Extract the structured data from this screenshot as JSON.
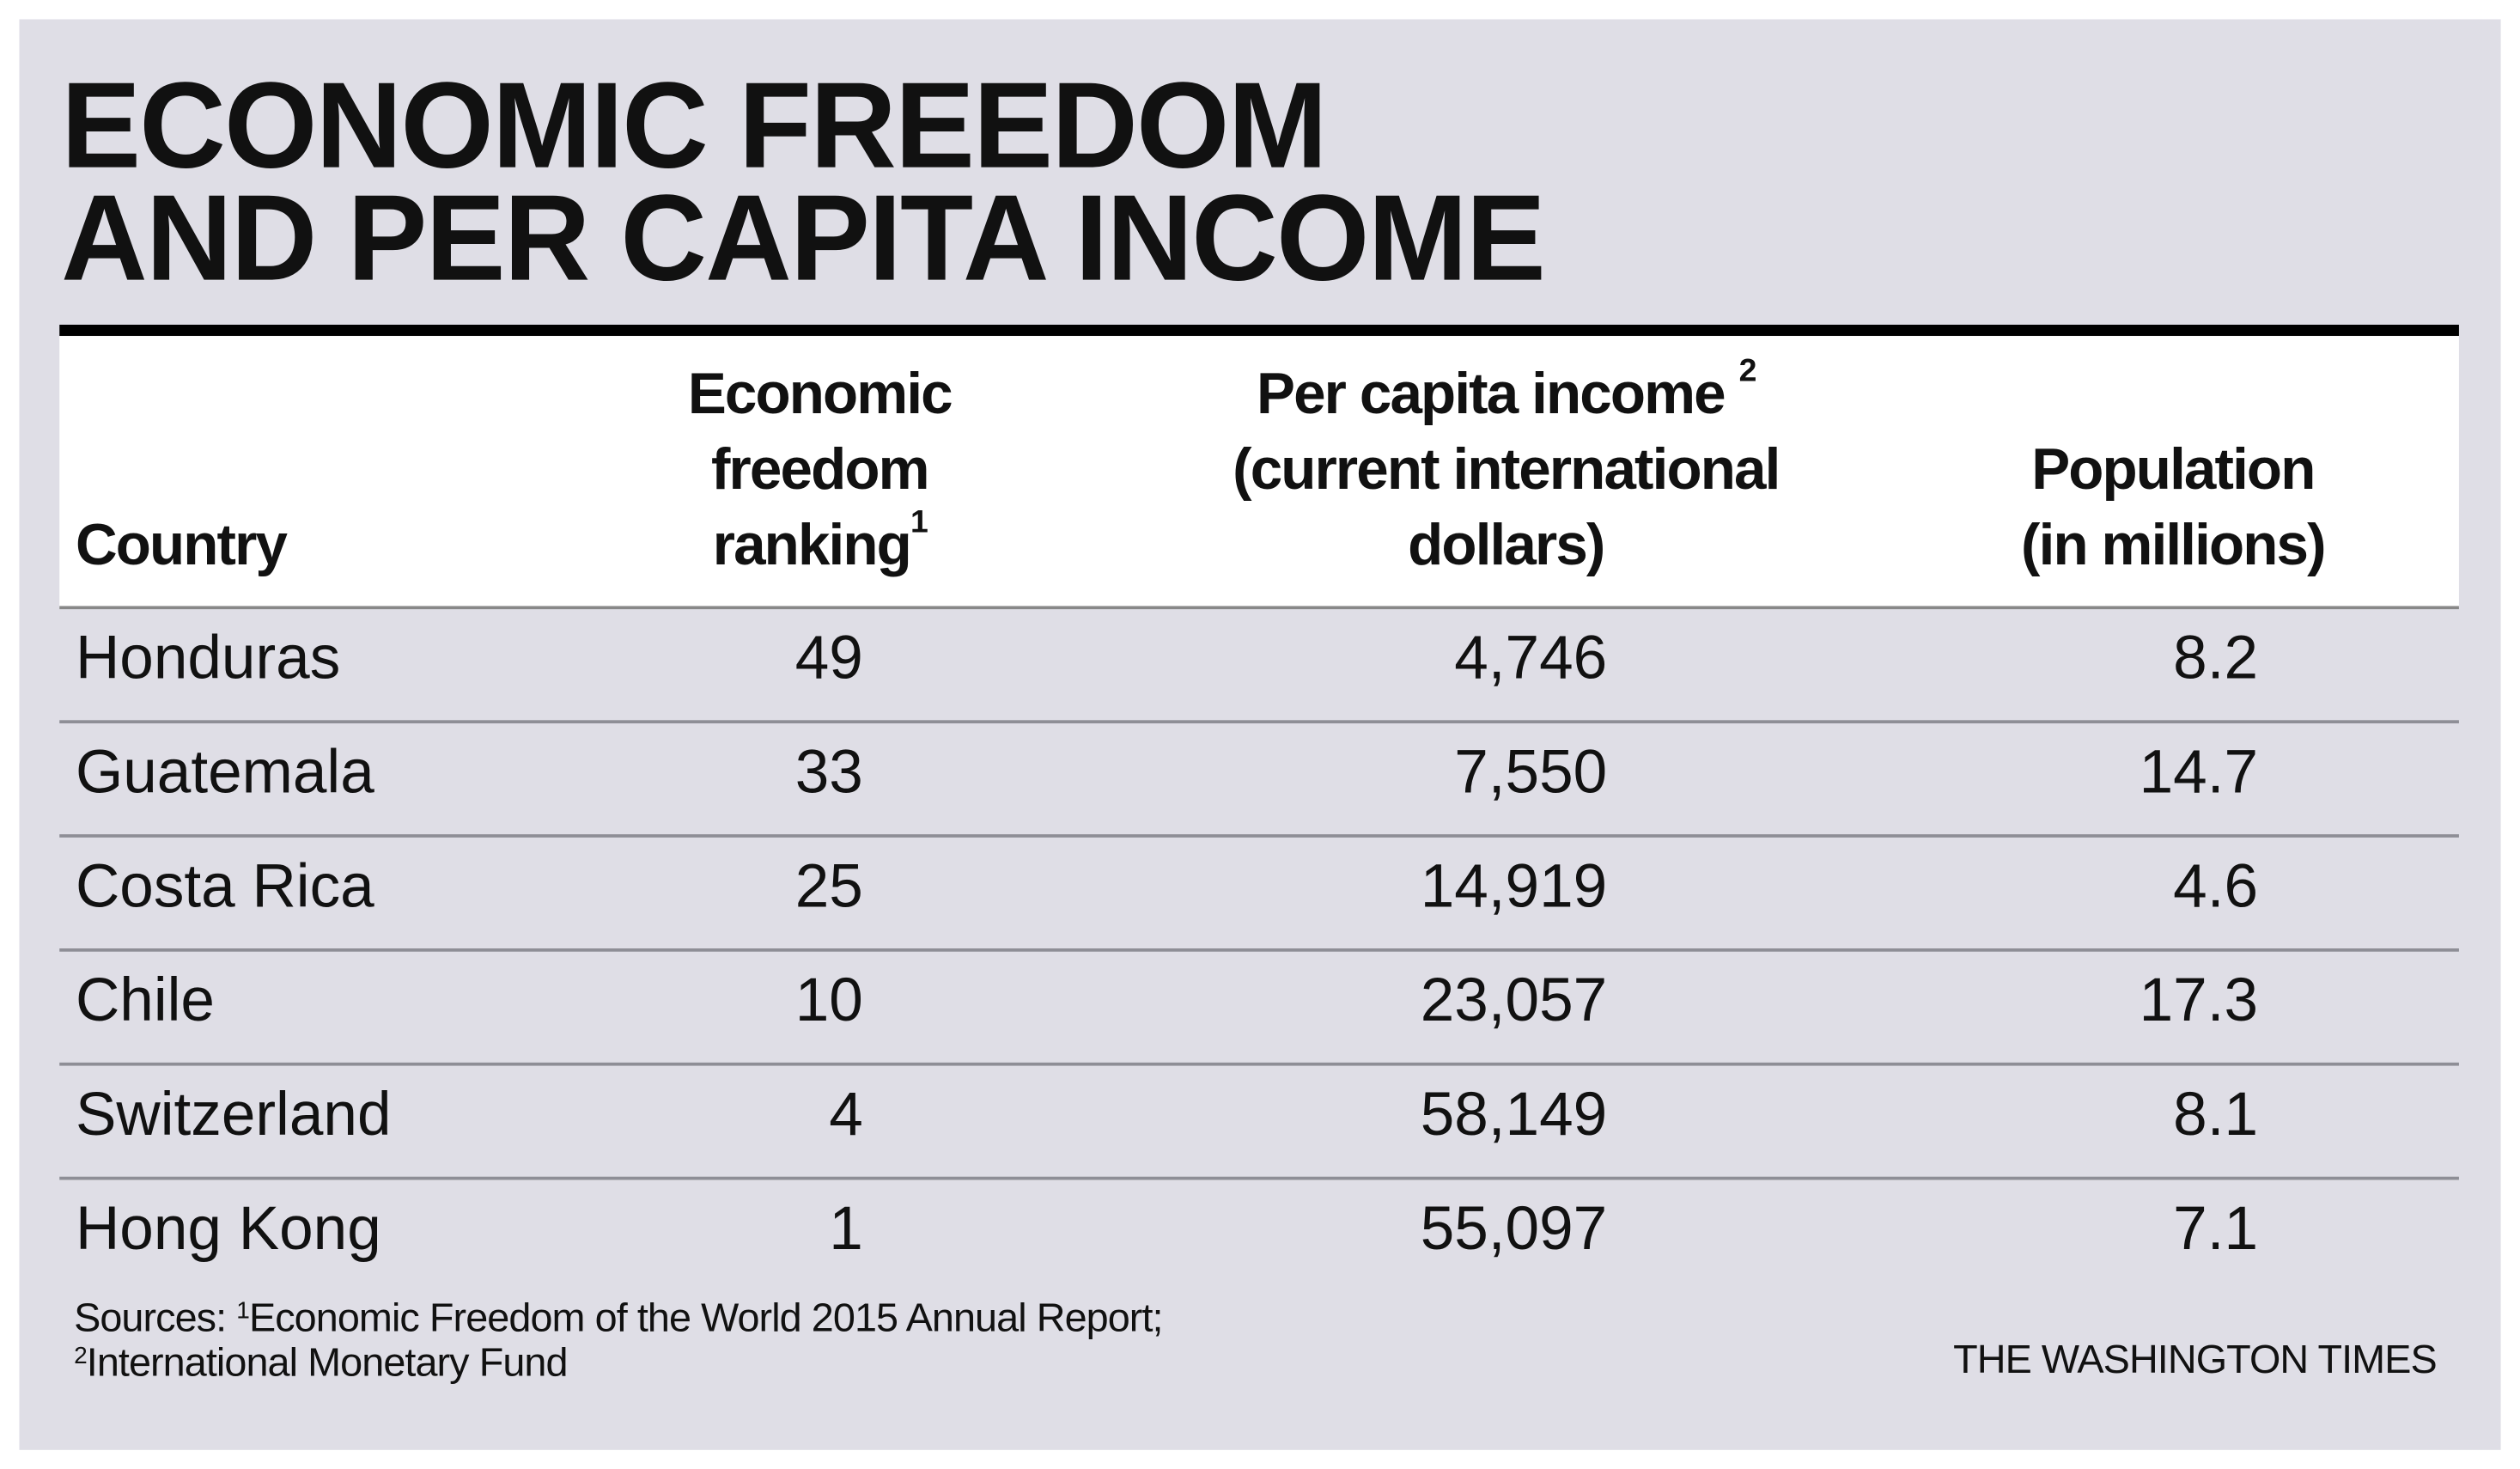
{
  "title_line1": "ECONOMIC FREEDOM",
  "title_line2": "AND PER CAPITA INCOME",
  "headers": {
    "country": "Country",
    "ranking": [
      "Economic",
      "freedom",
      "ranking"
    ],
    "ranking_note": "1",
    "income": [
      "Per capita income",
      "(current international",
      "dollars)"
    ],
    "income_note": "2",
    "population": [
      "Population",
      "(in millions)"
    ]
  },
  "rows": [
    {
      "country": "Honduras",
      "ranking": "49",
      "income": "4,746",
      "population": "8.2"
    },
    {
      "country": "Guatemala",
      "ranking": "33",
      "income": "7,550",
      "population": "14.7"
    },
    {
      "country": "Costa Rica",
      "ranking": "25",
      "income": "14,919",
      "population": "4.6"
    },
    {
      "country": "Chile",
      "ranking": "10",
      "income": "23,057",
      "population": "17.3"
    },
    {
      "country": "Switzerland",
      "ranking": "4",
      "income": "58,149",
      "population": "8.1"
    },
    {
      "country": "Hong Kong",
      "ranking": "1",
      "income": "55,097",
      "population": "7.1"
    }
  ],
  "sources": {
    "label": "Sources: ",
    "note1": "1",
    "source1": "Economic Freedom of the World 2015 Annual Report;",
    "note2": "2",
    "source2": "International Monetary Fund"
  },
  "credit": "THE WASHINGTON TIMES"
}
